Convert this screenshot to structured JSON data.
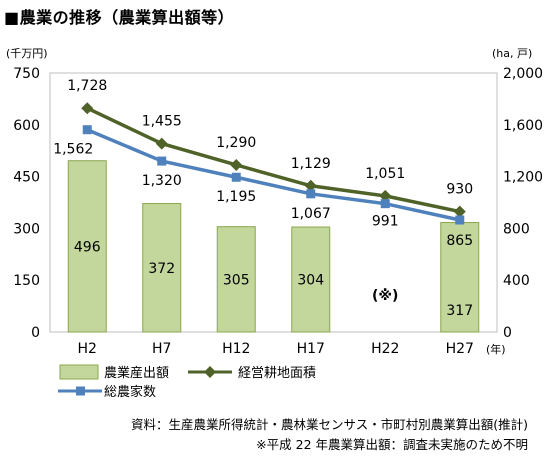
{
  "title": "■農業の推移（農業算出額等）",
  "chart_data": {
    "type": "bar",
    "categories": [
      "H2",
      "H7",
      "H12",
      "H17",
      "H22",
      "H27"
    ],
    "x_unit": "(年)",
    "y_left": {
      "unit": "(千万円)",
      "ylim": [
        0,
        750
      ],
      "ticks": [
        0,
        150,
        300,
        450,
        600,
        750
      ]
    },
    "y_right": {
      "unit": "(ha, 戸)",
      "ylim": [
        0,
        2000
      ],
      "ticks": [
        "0",
        "400",
        "800",
        "1,200",
        "1,600",
        "2,000"
      ]
    },
    "bars": {
      "name": "農業産出額",
      "axis": "left",
      "values": [
        496,
        372,
        305,
        304,
        null,
        317
      ],
      "labels": [
        "496",
        "372",
        "305",
        "304",
        "",
        "317"
      ],
      "missing_label": "(※)",
      "color": "#c3d69b",
      "stroke": "#8aa84e"
    },
    "series": [
      {
        "name": "経営耕地面積",
        "axis": "right",
        "marker": "diamond",
        "color": "#4f6228",
        "values": [
          1728,
          1455,
          1290,
          1129,
          1051,
          930
        ],
        "labels": [
          "1,728",
          "1,455",
          "1,290",
          "1,129",
          "1,051",
          "930"
        ]
      },
      {
        "name": "総農家数",
        "axis": "right",
        "marker": "square",
        "color": "#4f81bd",
        "values": [
          1562,
          1320,
          1195,
          1067,
          991,
          865
        ],
        "labels": [
          "1,562",
          "1,320",
          "1,195",
          "1,067",
          "991",
          "865"
        ]
      }
    ],
    "grid": false,
    "legend_position": "bottom-left"
  },
  "source": "資料：生産農業所得統計・農林業センサス・市町村別農業算出額(推計)",
  "note": "※平成 22 年農業算出額：調査未実施のため不明"
}
